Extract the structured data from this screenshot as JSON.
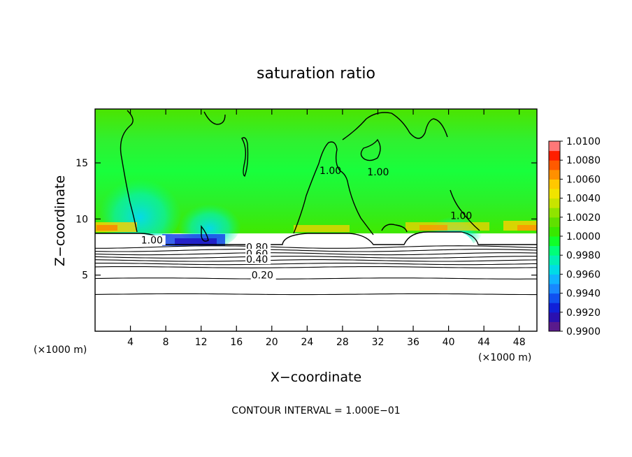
{
  "chart_data": {
    "type": "heatmap",
    "title": "saturation ratio",
    "xlabel": "X−coordinate",
    "ylabel": "Z−coordinate",
    "x_unit_left": "(×1000 m)",
    "x_unit_right": "(×1000 m)",
    "xlim": [
      0,
      50
    ],
    "ylim": [
      0,
      19.8
    ],
    "x_ticks": [
      4,
      8,
      12,
      16,
      20,
      24,
      28,
      32,
      36,
      40,
      44,
      48
    ],
    "y_ticks": [
      5,
      10,
      15
    ],
    "x_tick_labels": [
      "4",
      "8",
      "12",
      "16",
      "20",
      "24",
      "28",
      "32",
      "36",
      "40",
      "44",
      "48"
    ],
    "y_tick_labels": [
      "5",
      "10",
      "15"
    ],
    "grid": false,
    "colorbar": {
      "placement": "right",
      "min": 0.99,
      "max": 1.01,
      "labels": [
        "1.0100",
        "1.0080",
        "1.0060",
        "1.0040",
        "1.0020",
        "1.0000",
        "0.9980",
        "0.9960",
        "0.9940",
        "0.9920",
        "0.9900"
      ],
      "levels": [
        0.99,
        0.991,
        0.992,
        0.993,
        0.994,
        0.995,
        0.996,
        0.997,
        0.998,
        0.999,
        1.0,
        1.001,
        1.002,
        1.003,
        1.004,
        1.005,
        1.006,
        1.007,
        1.008,
        1.009,
        1.01
      ],
      "colors": [
        "#5a1a8c",
        "#2a10b0",
        "#1020d8",
        "#1050f0",
        "#1888ff",
        "#10b4ff",
        "#00dce6",
        "#00f0b4",
        "#00ff78",
        "#10ff28",
        "#38e800",
        "#60e000",
        "#90e400",
        "#c8e400",
        "#f0e400",
        "#ffc800",
        "#ff9000",
        "#ff5a00",
        "#ff1e00",
        "#ff7878"
      ]
    },
    "contour_labels": [
      {
        "text": "1.00",
        "x": 5.2,
        "y": 7.8
      },
      {
        "text": "1.00",
        "x": 25.4,
        "y": 14.0
      },
      {
        "text": "1.00",
        "x": 30.8,
        "y": 13.9
      },
      {
        "text": "1.00",
        "x": 40.2,
        "y": 10.0
      },
      {
        "text": "0.80",
        "x": 17.1,
        "y": 7.2
      },
      {
        "text": "0.60",
        "x": 17.1,
        "y": 6.6
      },
      {
        "text": "0.40",
        "x": 17.1,
        "y": 6.1
      },
      {
        "text": "0.20",
        "x": 17.7,
        "y": 4.7
      }
    ],
    "stable_contour_heights": [
      3.3,
      4.7,
      5.7,
      6.0,
      6.3,
      6.6,
      6.9,
      7.2,
      7.5
    ]
  },
  "footer": "CONTOUR INTERVAL = 1.000E−01"
}
